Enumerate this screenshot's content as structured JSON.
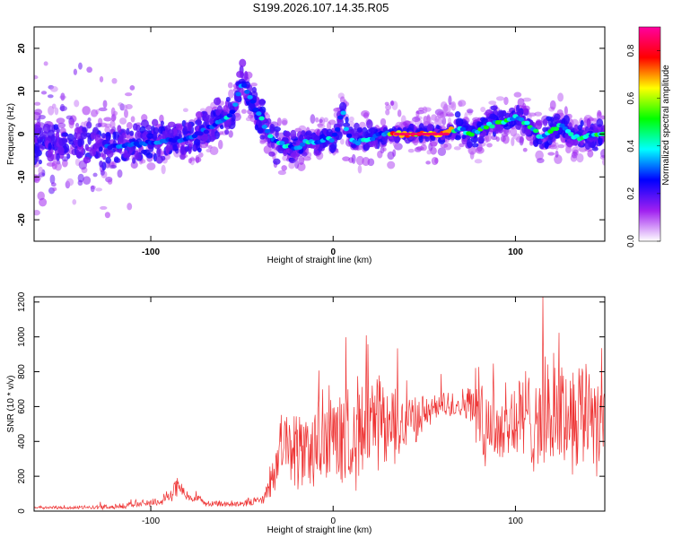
{
  "title": "S199.2026.107.14.35.R05",
  "chart_data": [
    {
      "type": "heatmap",
      "title": "S199.2026.107.14.35.R05",
      "xlabel": "Height of straight line (km)",
      "ylabel": "Frequency (Hz)",
      "xlim": [
        -164,
        149
      ],
      "ylim": [
        -25,
        25
      ],
      "x_ticks": [
        -100,
        0,
        100
      ],
      "x_tick_labels": [
        "-100",
        "0",
        "100"
      ],
      "y_ticks": [
        -20,
        -10,
        0,
        10,
        20
      ],
      "y_tick_labels": [
        "-20",
        "-10",
        "0",
        "10",
        "20"
      ],
      "colorbar": {
        "label": "Normalized spectral amplitude",
        "range": [
          0,
          0.9
        ],
        "ticks": [
          0.0,
          0.2,
          0.4,
          0.6,
          0.8
        ],
        "tick_labels": [
          "0.0",
          "0.2",
          "0.4",
          "0.6",
          "0.8"
        ],
        "colormap": [
          "#ffffff",
          "#a020f0",
          "#0000ff",
          "#00ffff",
          "#00ff00",
          "#ffff00",
          "#ff0000",
          "#ff00a0"
        ]
      },
      "ridge": {
        "x": [
          -164,
          -140,
          -120,
          -100,
          -80,
          -65,
          -55,
          -50,
          -45,
          -40,
          -35,
          -30,
          -25,
          -20,
          -15,
          -10,
          -5,
          0,
          3,
          5,
          8,
          12,
          20,
          30,
          40,
          50,
          60,
          65,
          70,
          75,
          80,
          85,
          90,
          95,
          100,
          105,
          110,
          115,
          120,
          125,
          130,
          135,
          140,
          149
        ],
        "y": [
          -2,
          -2,
          -3,
          -2,
          -1,
          2,
          5,
          12,
          8,
          4,
          0,
          -2,
          -3,
          -3,
          -2,
          -2,
          -1,
          -1,
          2,
          6,
          0,
          -2,
          -1,
          0,
          0,
          0,
          0,
          1,
          1,
          0,
          1,
          2,
          3,
          3,
          4,
          3,
          1,
          -1,
          1,
          2,
          0,
          -1,
          0,
          0
        ]
      },
      "hot_segment": {
        "x": [
          30,
          65
        ],
        "y": 0
      }
    },
    {
      "type": "line",
      "xlabel": "Height of straight line (km)",
      "ylabel": "SNR (10 * v/v)",
      "xlim": [
        -164,
        149
      ],
      "ylim": [
        0,
        1230
      ],
      "x_ticks": [
        -100,
        0,
        100
      ],
      "x_tick_labels": [
        "-100",
        "0",
        "100"
      ],
      "y_ticks": [
        0,
        200,
        400,
        600,
        800,
        1000,
        1200
      ],
      "y_tick_labels": [
        "0",
        "200",
        "400",
        "600",
        "800",
        "1000",
        "1200"
      ],
      "series": [
        {
          "name": "SNR",
          "color": "#ee3333",
          "x": [
            -164,
            -140,
            -120,
            -110,
            -100,
            -90,
            -85,
            -80,
            -70,
            -60,
            -50,
            -40,
            -35,
            -30,
            -25,
            -20,
            -10,
            0,
            10,
            20,
            30,
            40,
            50,
            55,
            60,
            70,
            75,
            80,
            90,
            100,
            110,
            120,
            130,
            140,
            149
          ],
          "noise": [
            8,
            10,
            15,
            18,
            25,
            35,
            60,
            30,
            20,
            18,
            20,
            30,
            60,
            150,
            200,
            230,
            260,
            270,
            290,
            320,
            280,
            180,
            100,
            80,
            90,
            80,
            110,
            250,
            260,
            280,
            300,
            330,
            320,
            330,
            320
          ],
          "y": [
            20,
            20,
            25,
            35,
            50,
            70,
            140,
            80,
            50,
            40,
            45,
            60,
            120,
            300,
            420,
            330,
            380,
            400,
            450,
            480,
            470,
            520,
            560,
            580,
            600,
            620,
            600,
            560,
            480,
            520,
            540,
            560,
            560,
            600,
            520
          ]
        }
      ]
    }
  ]
}
